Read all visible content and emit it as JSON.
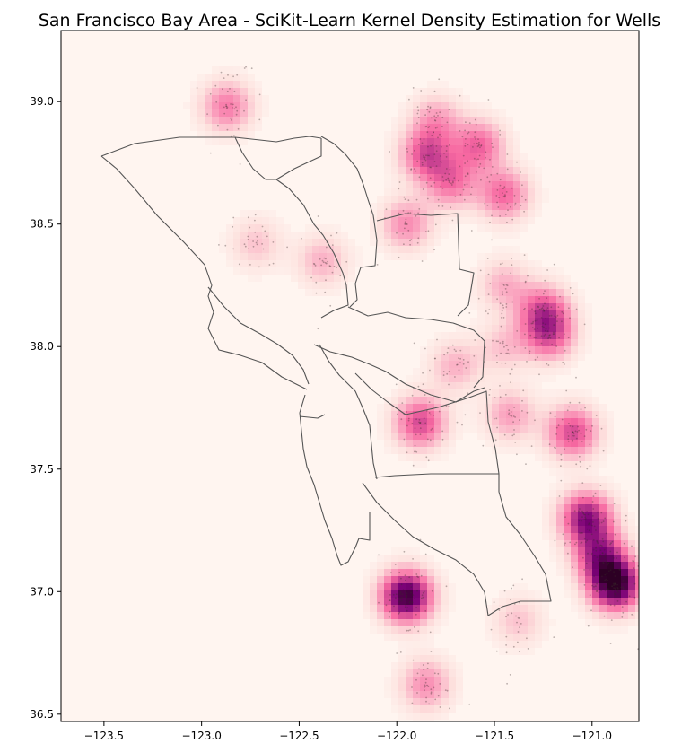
{
  "chart_data": {
    "type": "heatmap",
    "title": "San Francisco Bay Area - SciKit-Learn Kernel Density Estimation for Wells",
    "xlabel": "",
    "ylabel": "",
    "xlim": [
      -123.72,
      -120.76
    ],
    "ylim": [
      36.47,
      39.29
    ],
    "x_ticks": [
      -123.5,
      -123.0,
      -122.5,
      -122.0,
      -121.5,
      -121.0
    ],
    "x_tick_labels": [
      "−123.5",
      "−123.0",
      "−122.5",
      "−122.0",
      "−121.5",
      "−121.0"
    ],
    "y_ticks": [
      36.5,
      37.0,
      37.5,
      38.0,
      38.5,
      39.0
    ],
    "y_tick_labels": [
      "36.5",
      "37.0",
      "37.5",
      "38.0",
      "38.5",
      "39.0"
    ],
    "grid": false,
    "colormap": "RdPu",
    "colors": {
      "background": "#fff5f0",
      "low": "#fde0dd",
      "mid": "#f768a1",
      "high": "#7a0177",
      "peak": "#2d0024",
      "county_lines": "#555555",
      "points": "#3a2a2a"
    },
    "density_hotspots": [
      {
        "lon": -120.88,
        "lat": 37.03,
        "density": 1.0
      },
      {
        "lon": -121.03,
        "lat": 37.3,
        "density": 0.75
      },
      {
        "lon": -121.95,
        "lat": 36.98,
        "density": 0.95
      },
      {
        "lon": -120.96,
        "lat": 37.15,
        "density": 0.6
      },
      {
        "lon": -121.1,
        "lat": 37.65,
        "density": 0.55
      },
      {
        "lon": -121.22,
        "lat": 38.05,
        "density": 0.5
      },
      {
        "lon": -121.25,
        "lat": 38.15,
        "density": 0.45
      },
      {
        "lon": -121.85,
        "lat": 38.78,
        "density": 0.5
      },
      {
        "lon": -121.58,
        "lat": 38.82,
        "density": 0.45
      },
      {
        "lon": -121.72,
        "lat": 38.67,
        "density": 0.4
      },
      {
        "lon": -121.45,
        "lat": 38.62,
        "density": 0.45
      },
      {
        "lon": -121.95,
        "lat": 38.5,
        "density": 0.35
      },
      {
        "lon": -121.88,
        "lat": 37.69,
        "density": 0.55
      },
      {
        "lon": -122.87,
        "lat": 38.98,
        "density": 0.4
      },
      {
        "lon": -121.85,
        "lat": 36.62,
        "density": 0.35
      },
      {
        "lon": -121.42,
        "lat": 37.72,
        "density": 0.3
      },
      {
        "lon": -121.7,
        "lat": 37.92,
        "density": 0.25
      },
      {
        "lon": -121.45,
        "lat": 38.25,
        "density": 0.25
      },
      {
        "lon": -122.38,
        "lat": 38.35,
        "density": 0.25
      },
      {
        "lon": -122.72,
        "lat": 38.42,
        "density": 0.2
      },
      {
        "lon": -121.38,
        "lat": 36.88,
        "density": 0.2
      },
      {
        "lon": -121.8,
        "lat": 38.92,
        "density": 0.3
      },
      {
        "lon": -121.45,
        "lat": 38.0,
        "density": 0.2
      }
    ]
  }
}
